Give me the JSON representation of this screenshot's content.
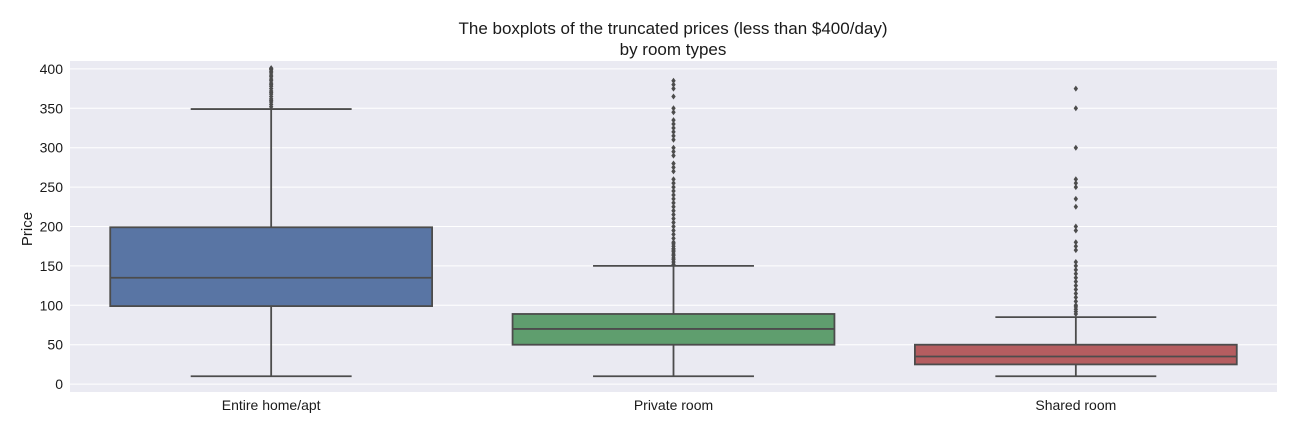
{
  "chart_data": {
    "type": "box",
    "title": "The boxplots of the truncated prices (less than $400/day)",
    "subtitle": "by room types",
    "xlabel": "",
    "ylabel": "Price",
    "ylim": [
      -10,
      410
    ],
    "yticks": [
      0,
      50,
      100,
      150,
      200,
      250,
      300,
      350,
      400
    ],
    "grid": true,
    "background": "#eaeaf2",
    "line_color": "#4c4c4c",
    "categories": [
      "Entire home/apt",
      "Private room",
      "Shared room"
    ],
    "boxes": [
      {
        "category": "Entire home/apt",
        "color": "#5975a4",
        "whisker_low": 10,
        "q1": 99,
        "median": 135,
        "q3": 199,
        "whisker_high": 349,
        "outliers": [
          352,
          355,
          358,
          360,
          362,
          365,
          368,
          370,
          372,
          375,
          378,
          380,
          382,
          385,
          387,
          390,
          392,
          395,
          397,
          399,
          400,
          401
        ]
      },
      {
        "category": "Private room",
        "color": "#5f9e6e",
        "whisker_low": 10,
        "q1": 50,
        "median": 70,
        "q3": 89,
        "whisker_high": 150,
        "outliers": [
          152,
          155,
          158,
          160,
          163,
          165,
          168,
          170,
          172,
          175,
          178,
          180,
          185,
          190,
          195,
          200,
          205,
          210,
          215,
          220,
          225,
          230,
          235,
          240,
          245,
          250,
          255,
          260,
          270,
          275,
          280,
          290,
          295,
          300,
          310,
          315,
          320,
          325,
          330,
          335,
          345,
          350,
          365,
          375,
          380,
          385
        ]
      },
      {
        "category": "Shared room",
        "color": "#b55d60",
        "whisker_low": 10,
        "q1": 25,
        "median": 35,
        "q3": 50,
        "whisker_high": 85,
        "outliers": [
          89,
          92,
          95,
          98,
          100,
          105,
          110,
          115,
          120,
          125,
          130,
          135,
          140,
          145,
          150,
          155,
          170,
          175,
          180,
          195,
          200,
          225,
          235,
          250,
          255,
          260,
          300,
          350,
          375
        ]
      }
    ]
  }
}
